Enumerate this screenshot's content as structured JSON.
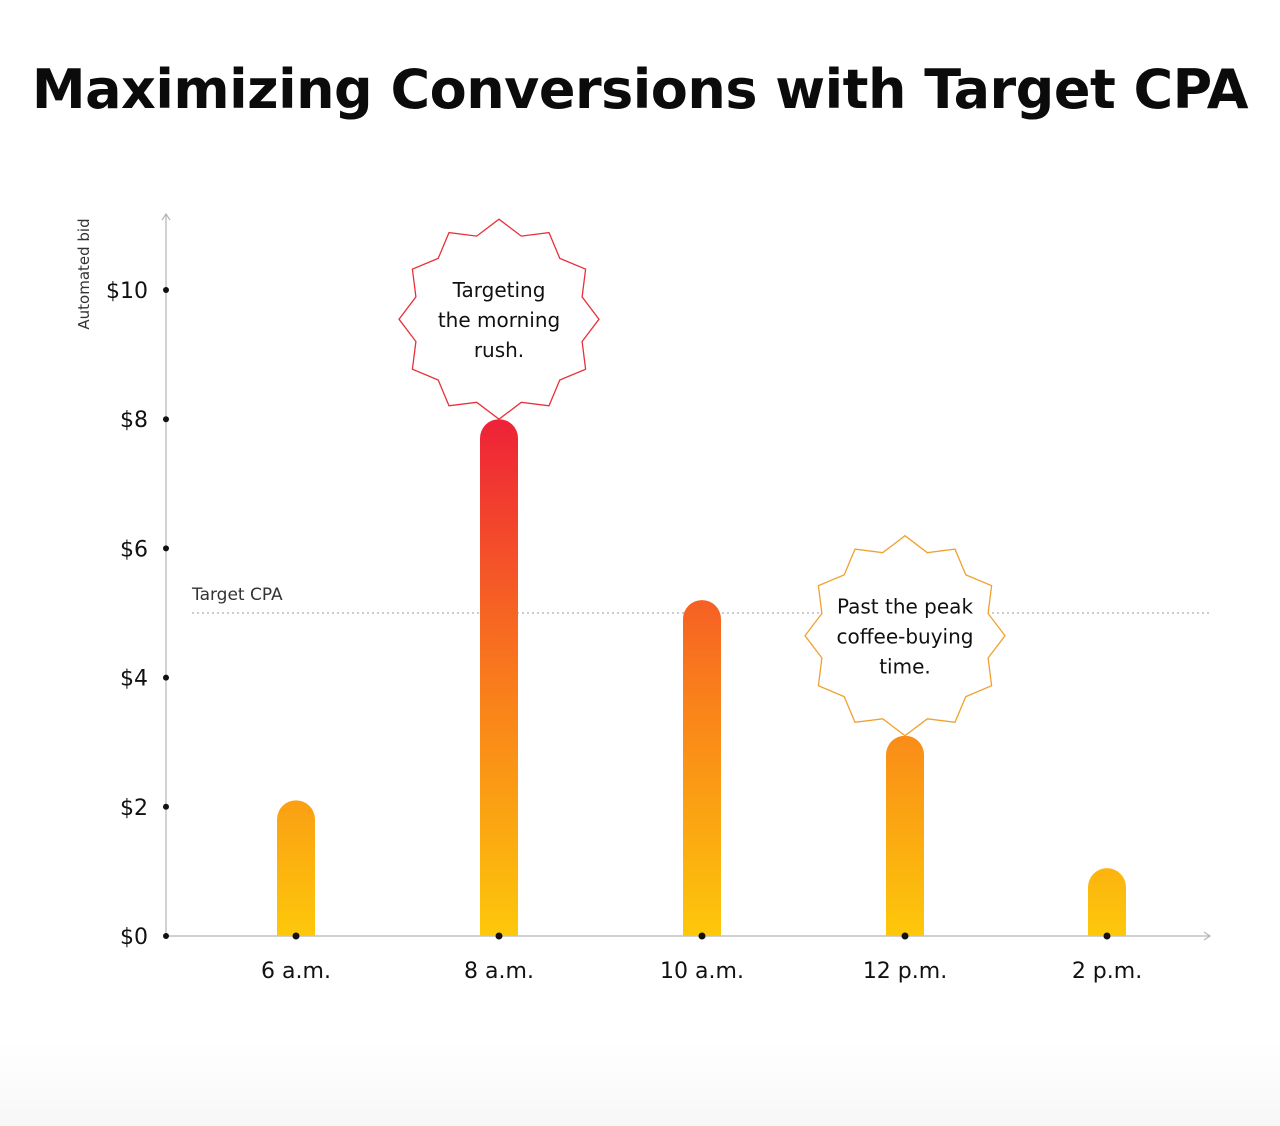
{
  "chart_data": {
    "type": "bar",
    "title": "Maximizing Conversions with Target CPA",
    "ylabel": "Automated bid",
    "xlabel": "",
    "categories": [
      "6 a.m.",
      "8 a.m.",
      "10 a.m.",
      "12 p.m.",
      "2 p.m."
    ],
    "values": [
      2.1,
      8.0,
      5.2,
      3.1,
      1.05
    ],
    "ylim": [
      0,
      11.2
    ],
    "yticks": [
      0,
      2,
      4,
      6,
      8,
      10
    ],
    "ytick_labels": [
      "$0",
      "$2",
      "$4",
      "$6",
      "$8",
      "$10"
    ],
    "grid": false,
    "reference_line": {
      "label": "Target CPA",
      "value": 5.0
    },
    "annotations": [
      {
        "category": "8 a.m.",
        "lines": [
          "Targeting",
          "the morning",
          "rush."
        ],
        "color": "#e8303a"
      },
      {
        "category": "12 p.m.",
        "lines": [
          "Past the peak",
          "coffee-buying",
          "time."
        ],
        "color": "#f0a030"
      }
    ],
    "colors": {
      "bar_top": "#ee2138",
      "bar_mid": "#f97a1c",
      "bar_bottom": "#fdc80a",
      "axis": "#b5b5b5"
    }
  }
}
